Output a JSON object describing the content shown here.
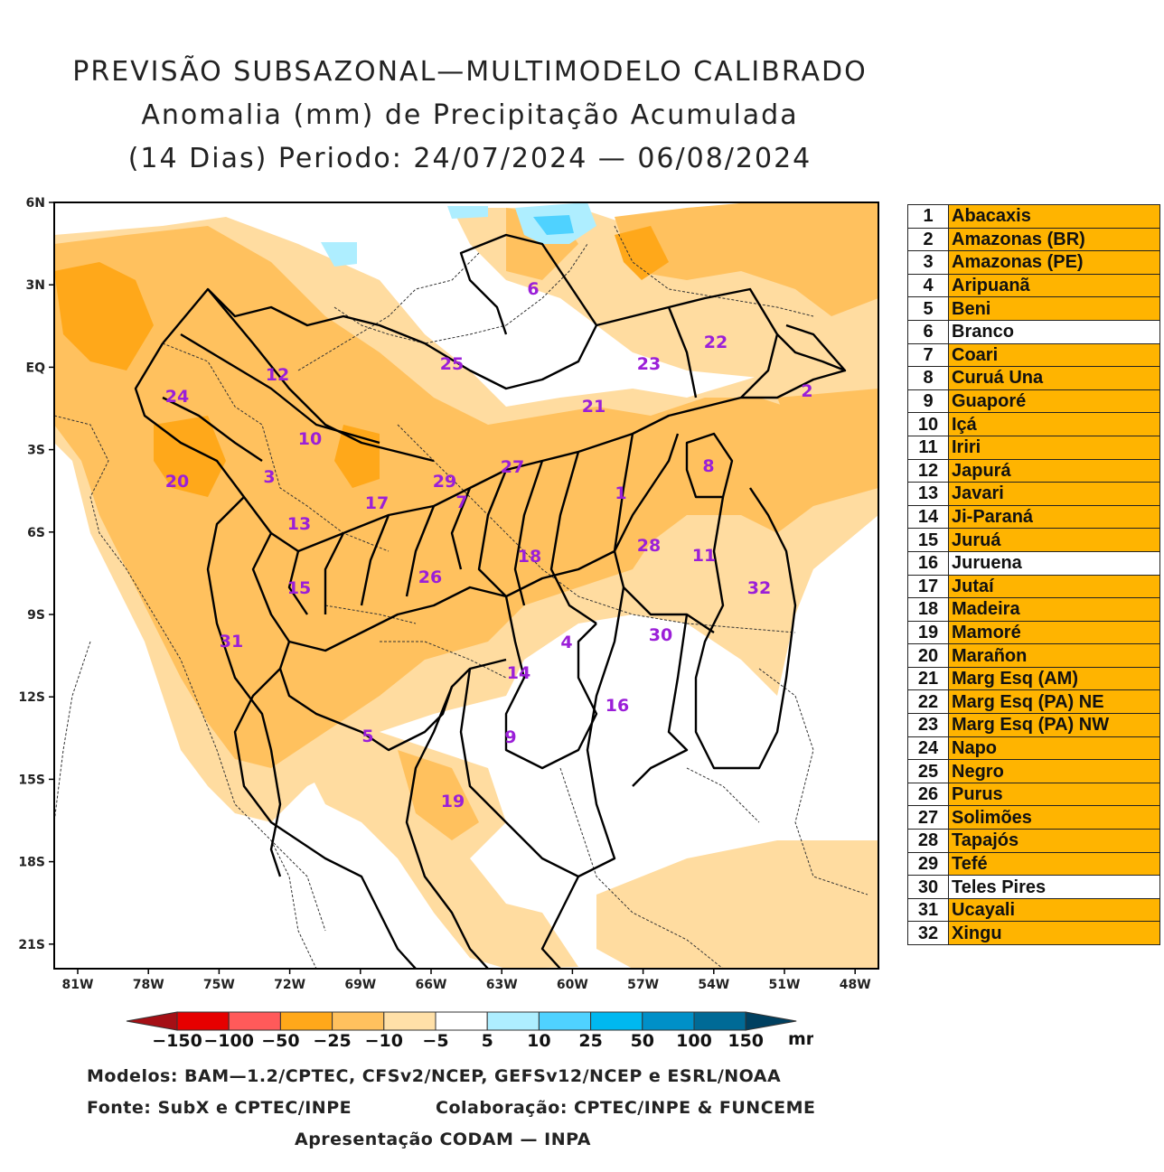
{
  "title": {
    "line1": "PREVISÃO SUBSAZONAL—MULTIMODELO CALIBRADO",
    "line2": "Anomalia (mm) de Precipitação Acumulada",
    "line3": "(14 Dias) Periodo: 24/07/2024 — 06/08/2024"
  },
  "map": {
    "lat_labels": [
      "6N",
      "3N",
      "EQ",
      "3S",
      "6S",
      "9S",
      "12S",
      "15S",
      "18S",
      "21S"
    ],
    "lon_labels": [
      "81W",
      "78W",
      "75W",
      "72W",
      "69W",
      "66W",
      "63W",
      "60W",
      "57W",
      "54W",
      "51W",
      "48W"
    ],
    "basin_numbers": [
      "6",
      "25",
      "23",
      "22",
      "2",
      "12",
      "24",
      "10",
      "21",
      "3",
      "20",
      "8",
      "17",
      "29",
      "7",
      "27",
      "1",
      "13",
      "28",
      "11",
      "18",
      "15",
      "26",
      "32",
      "31",
      "30",
      "4",
      "14",
      "16",
      "5",
      "9",
      "19"
    ]
  },
  "basins": [
    {
      "num": "1",
      "name": "Abacaxis",
      "color": "#ffb400"
    },
    {
      "num": "2",
      "name": "Amazonas (BR)",
      "color": "#ffb400"
    },
    {
      "num": "3",
      "name": "Amazonas (PE)",
      "color": "#ffb400"
    },
    {
      "num": "4",
      "name": "Aripuanã",
      "color": "#ffb400"
    },
    {
      "num": "5",
      "name": "Beni",
      "color": "#ffb400"
    },
    {
      "num": "6",
      "name": "Branco",
      "color": "#ffffff"
    },
    {
      "num": "7",
      "name": "Coari",
      "color": "#ffb400"
    },
    {
      "num": "8",
      "name": "Curuá Una",
      "color": "#ffb400"
    },
    {
      "num": "9",
      "name": "Guaporé",
      "color": "#ffb400"
    },
    {
      "num": "10",
      "name": "Içá",
      "color": "#ffb400"
    },
    {
      "num": "11",
      "name": "Iriri",
      "color": "#ffb400"
    },
    {
      "num": "12",
      "name": "Japurá",
      "color": "#ffb400"
    },
    {
      "num": "13",
      "name": "Javari",
      "color": "#ffb400"
    },
    {
      "num": "14",
      "name": "Ji-Paraná",
      "color": "#ffb400"
    },
    {
      "num": "15",
      "name": "Juruá",
      "color": "#ffb400"
    },
    {
      "num": "16",
      "name": "Juruena",
      "color": "#ffffff"
    },
    {
      "num": "17",
      "name": "Jutaí",
      "color": "#ffb400"
    },
    {
      "num": "18",
      "name": "Madeira",
      "color": "#ffb400"
    },
    {
      "num": "19",
      "name": "Mamoré",
      "color": "#ffb400"
    },
    {
      "num": "20",
      "name": "Marañon",
      "color": "#ffb400"
    },
    {
      "num": "21",
      "name": "Marg Esq (AM)",
      "color": "#ffb400"
    },
    {
      "num": "22",
      "name": "Marg Esq (PA) NE",
      "color": "#ffb400"
    },
    {
      "num": "23",
      "name": "Marg Esq (PA) NW",
      "color": "#ffb400"
    },
    {
      "num": "24",
      "name": "Napo",
      "color": "#ffb400"
    },
    {
      "num": "25",
      "name": "Negro",
      "color": "#ffb400"
    },
    {
      "num": "26",
      "name": "Purus",
      "color": "#ffb400"
    },
    {
      "num": "27",
      "name": "Solimões",
      "color": "#ffb400"
    },
    {
      "num": "28",
      "name": "Tapajós",
      "color": "#ffb400"
    },
    {
      "num": "29",
      "name": "Tefé",
      "color": "#ffb400"
    },
    {
      "num": "30",
      "name": "Teles Pires",
      "color": "#ffffff"
    },
    {
      "num": "31",
      "name": "Ucayali",
      "color": "#ffb400"
    },
    {
      "num": "32",
      "name": "Xingu",
      "color": "#ffb400"
    }
  ],
  "colorbar": {
    "ticks": [
      "−150",
      "−100",
      "−50",
      "−25",
      "−10",
      "−5",
      "5",
      "10",
      "25",
      "50",
      "100",
      "150"
    ],
    "unit": "mm",
    "colors": [
      "#a50f15",
      "#e60000",
      "#ff5a5a",
      "#ffa81a",
      "#ffc15e",
      "#ffe0a8",
      "#ffffff",
      "#aeeeff",
      "#4fd2ff",
      "#00b8f0",
      "#0090c8",
      "#006a96",
      "#004060"
    ]
  },
  "credits": {
    "models": "Modelos: BAM—1.2/CPTEC, CFSv2/NCEP, GEFSv12/NCEP e ESRL/NOAA",
    "source": "Fonte: SubX e CPTEC/INPE",
    "collab": "Colaboração: CPTEC/INPE & FUNCEME",
    "presentation": "Apresentação CODAM — INPA"
  }
}
